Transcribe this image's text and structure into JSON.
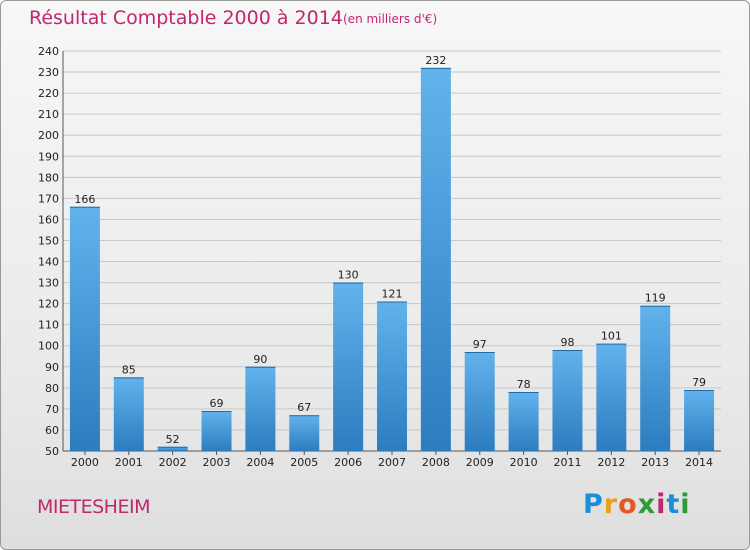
{
  "header": {
    "title": "Résultat Comptable 2000 à 2014",
    "subtitle": "(en milliers d'€)"
  },
  "footer": {
    "commune": "MIETESHEIM",
    "brand": "Proxiti"
  },
  "colors": {
    "title": "#c0286e",
    "bar_light": "#5fb0ea",
    "bar_dark": "#2e7fc2",
    "grid": "#c8c8c8"
  },
  "chart_data": {
    "type": "bar",
    "title": "Résultat Comptable 2000 à 2014",
    "subtitle": "(en milliers d'€)",
    "xlabel": "",
    "ylabel": "",
    "categories": [
      "2000",
      "2001",
      "2002",
      "2003",
      "2004",
      "2005",
      "2006",
      "2007",
      "2008",
      "2009",
      "2010",
      "2011",
      "2012",
      "2013",
      "2014"
    ],
    "values": [
      166,
      85,
      52,
      69,
      90,
      67,
      130,
      121,
      232,
      97,
      78,
      98,
      101,
      119,
      79
    ],
    "ylim": [
      50,
      240
    ],
    "yticks": [
      50,
      60,
      70,
      80,
      90,
      100,
      110,
      120,
      130,
      140,
      150,
      160,
      170,
      180,
      190,
      200,
      210,
      220,
      230,
      240
    ],
    "grid": true,
    "data_labels": true
  }
}
